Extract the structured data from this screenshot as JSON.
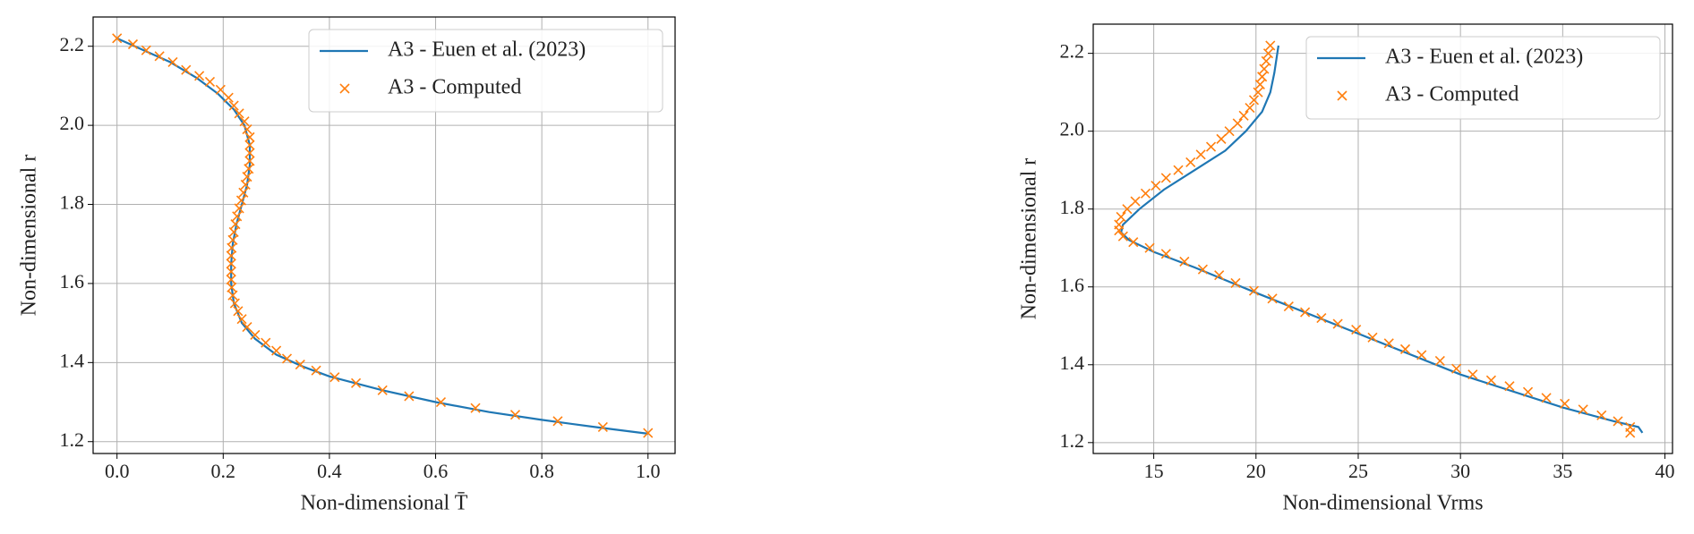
{
  "chart_data": [
    {
      "type": "line",
      "xlabel": "Non-dimensional T̄",
      "ylabel": "Non-dimensional r",
      "xlim": [
        -0.045,
        1.051
      ],
      "ylim": [
        1.17,
        2.274
      ],
      "xticks": [
        {
          "value": 0.0,
          "label": "0.0"
        },
        0.2,
        0.4,
        0.6,
        0.8,
        {
          "value": 1.0,
          "label": "1.0"
        }
      ],
      "yticks": [
        1.2,
        1.4,
        1.6,
        1.8,
        {
          "value": 2.0,
          "label": "2.0"
        },
        2.2
      ],
      "grid": true,
      "legend": "upper right",
      "series": [
        {
          "name": "A3 - Euen et al. (2023)",
          "color": "#1f77b4",
          "marker": "none",
          "x": [
            0,
            0.05,
            0.1,
            0.15,
            0.19,
            0.22,
            0.24,
            0.25,
            0.25,
            0.245,
            0.235,
            0.225,
            0.218,
            0.215,
            0.215,
            0.22,
            0.235,
            0.26,
            0.3,
            0.35,
            0.4,
            0.5,
            0.6,
            0.7,
            0.8,
            0.9,
            1.0
          ],
          "values": [
            2.22,
            2.19,
            2.16,
            2.12,
            2.08,
            2.04,
            2.0,
            1.95,
            1.9,
            1.85,
            1.8,
            1.75,
            1.7,
            1.65,
            1.6,
            1.55,
            1.5,
            1.46,
            1.42,
            1.39,
            1.365,
            1.33,
            1.3,
            1.275,
            1.255,
            1.237,
            1.22
          ]
        },
        {
          "name": "A3 - Computed",
          "color": "#ff7f0e",
          "marker": "x",
          "x": [
            0,
            0.03,
            0.055,
            0.08,
            0.105,
            0.13,
            0.155,
            0.175,
            0.195,
            0.21,
            0.22,
            0.23,
            0.24,
            0.245,
            0.25,
            0.25,
            0.25,
            0.25,
            0.248,
            0.245,
            0.242,
            0.238,
            0.234,
            0.23,
            0.226,
            0.223,
            0.22,
            0.218,
            0.216,
            0.215,
            0.215,
            0.215,
            0.215,
            0.216,
            0.218,
            0.222,
            0.228,
            0.235,
            0.245,
            0.26,
            0.28,
            0.3,
            0.32,
            0.345,
            0.375,
            0.41,
            0.45,
            0.5,
            0.55,
            0.61,
            0.675,
            0.75,
            0.83,
            0.915,
            1.0
          ],
          "values": [
            2.22,
            2.205,
            2.19,
            2.175,
            2.16,
            2.14,
            2.125,
            2.11,
            2.09,
            2.07,
            2.05,
            2.03,
            2.01,
            1.99,
            1.97,
            1.95,
            1.93,
            1.91,
            1.89,
            1.87,
            1.85,
            1.83,
            1.81,
            1.79,
            1.77,
            1.75,
            1.73,
            1.71,
            1.69,
            1.67,
            1.65,
            1.63,
            1.61,
            1.59,
            1.57,
            1.55,
            1.53,
            1.51,
            1.49,
            1.47,
            1.45,
            1.43,
            1.41,
            1.395,
            1.38,
            1.363,
            1.348,
            1.33,
            1.315,
            1.3,
            1.285,
            1.268,
            1.252,
            1.237,
            1.222
          ]
        }
      ]
    },
    {
      "type": "line",
      "xlabel": "Non-dimensional Vrms",
      "ylabel": "Non-dimensional r",
      "xlim": [
        12.04,
        40.37
      ],
      "ylim": [
        1.172,
        2.275
      ],
      "xticks": [
        15,
        20,
        25,
        30,
        35,
        40
      ],
      "yticks": [
        1.2,
        1.4,
        1.6,
        1.8,
        {
          "value": 2.0,
          "label": "2.0"
        },
        2.2
      ],
      "grid": true,
      "legend": "upper right",
      "series": [
        {
          "name": "A3 - Euen et al. (2023)",
          "color": "#1f77b4",
          "marker": "none",
          "x": [
            21.1,
            20.9,
            20.7,
            20.3,
            19.5,
            18.5,
            17,
            15.5,
            14.3,
            13.5,
            13.4,
            13.8,
            15,
            17,
            20,
            25,
            30,
            35,
            37.5,
            38.7,
            38.9
          ],
          "values": [
            2.22,
            2.15,
            2.1,
            2.05,
            2.0,
            1.95,
            1.9,
            1.85,
            1.8,
            1.76,
            1.74,
            1.72,
            1.69,
            1.65,
            1.585,
            1.48,
            1.375,
            1.29,
            1.255,
            1.24,
            1.225
          ]
        },
        {
          "name": "A3 - Computed",
          "color": "#ff7f0e",
          "marker": "x",
          "x": [
            20.7,
            20.6,
            20.5,
            20.4,
            20.3,
            20.2,
            20.1,
            19.9,
            19.7,
            19.4,
            19.1,
            18.7,
            18.3,
            17.8,
            17.3,
            16.8,
            16.2,
            15.6,
            15.1,
            14.6,
            14.1,
            13.7,
            13.4,
            13.3,
            13.3,
            13.5,
            14,
            14.8,
            15.6,
            16.5,
            17.4,
            18.2,
            19,
            19.9,
            20.8,
            21.6,
            22.4,
            23.2,
            24.0,
            24.9,
            25.7,
            26.5,
            27.3,
            28.1,
            29,
            29.8,
            30.6,
            31.5,
            32.4,
            33.3,
            34.2,
            35.1,
            36,
            36.9,
            37.7,
            38.3,
            38.3
          ],
          "values": [
            2.22,
            2.2,
            2.18,
            2.16,
            2.14,
            2.12,
            2.1,
            2.08,
            2.06,
            2.04,
            2.02,
            2.0,
            1.98,
            1.96,
            1.94,
            1.92,
            1.9,
            1.88,
            1.86,
            1.84,
            1.82,
            1.8,
            1.78,
            1.76,
            1.745,
            1.73,
            1.715,
            1.7,
            1.685,
            1.665,
            1.645,
            1.63,
            1.61,
            1.59,
            1.57,
            1.55,
            1.535,
            1.52,
            1.505,
            1.49,
            1.47,
            1.455,
            1.44,
            1.425,
            1.41,
            1.39,
            1.375,
            1.36,
            1.345,
            1.33,
            1.315,
            1.3,
            1.285,
            1.27,
            1.255,
            1.24,
            1.225
          ]
        }
      ]
    }
  ]
}
